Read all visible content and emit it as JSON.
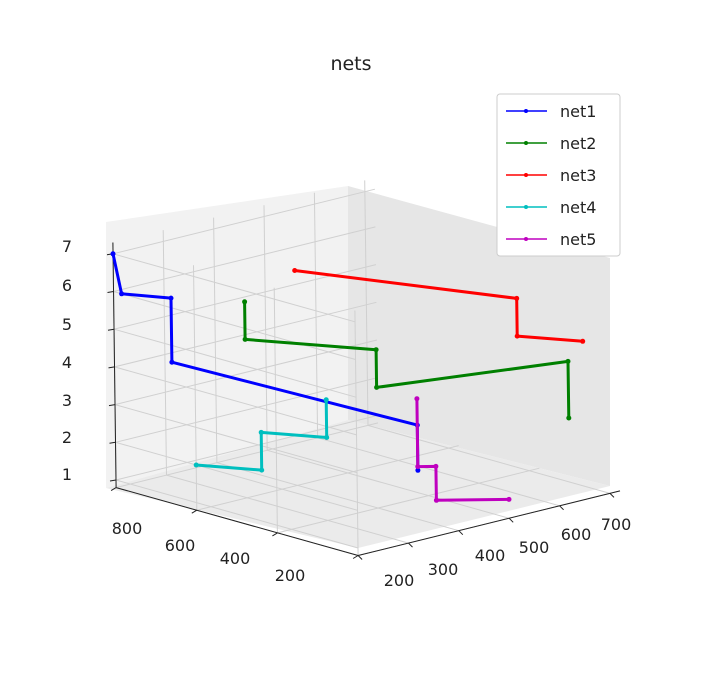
{
  "chart_data": {
    "type": "line3d",
    "title": "nets",
    "axes": {
      "x": {
        "ticks": [
          "800",
          "600",
          "400",
          "200"
        ]
      },
      "y": {
        "ticks": [
          "200",
          "300",
          "400",
          "500",
          "600",
          "700"
        ]
      },
      "z": {
        "ticks": [
          "1",
          "2",
          "3",
          "4",
          "5",
          "6",
          "7"
        ]
      }
    },
    "legend": {
      "position": "top-right"
    },
    "series": [
      {
        "name": "net1",
        "color": "#0000ff",
        "points": [
          {
            "x": 800,
            "y": 200,
            "z": 7.0
          },
          {
            "x": 780,
            "y": 200,
            "z": 6.0
          },
          {
            "x": 720,
            "y": 250,
            "z": 5.9
          },
          {
            "x": 720,
            "y": 250,
            "z": 4.2
          },
          {
            "x": 300,
            "y": 400,
            "z": 3.3
          },
          {
            "x": 300,
            "y": 400,
            "z": 2.1
          }
        ]
      },
      {
        "name": "net2",
        "color": "#008000",
        "points": [
          {
            "x": 600,
            "y": 300,
            "z": 6.0
          },
          {
            "x": 600,
            "y": 300,
            "z": 5.0
          },
          {
            "x": 400,
            "y": 400,
            "z": 5.0
          },
          {
            "x": 400,
            "y": 400,
            "z": 4.0
          },
          {
            "x": 300,
            "y": 700,
            "z": 4.0
          },
          {
            "x": 300,
            "y": 700,
            "z": 2.5
          }
        ]
      },
      {
        "name": "net3",
        "color": "#ff0000",
        "points": [
          {
            "x": 600,
            "y": 400,
            "z": 6.5
          },
          {
            "x": 300,
            "y": 600,
            "z": 6.0
          },
          {
            "x": 300,
            "y": 600,
            "z": 5.0
          },
          {
            "x": 200,
            "y": 650,
            "z": 5.0
          }
        ]
      },
      {
        "name": "net4",
        "color": "#00bfbf",
        "points": [
          {
            "x": 600,
            "y": 200,
            "z": 2.0
          },
          {
            "x": 500,
            "y": 250,
            "z": 2.0
          },
          {
            "x": 500,
            "y": 250,
            "z": 3.0
          },
          {
            "x": 400,
            "y": 300,
            "z": 3.0
          },
          {
            "x": 400,
            "y": 300,
            "z": 4.0
          }
        ]
      },
      {
        "name": "net5",
        "color": "#bf00bf",
        "points": [
          {
            "x": 300,
            "y": 400,
            "z": 4.0
          },
          {
            "x": 300,
            "y": 400,
            "z": 2.2
          },
          {
            "x": 280,
            "y": 420,
            "z": 2.2
          },
          {
            "x": 280,
            "y": 420,
            "z": 1.3
          },
          {
            "x": 200,
            "y": 500,
            "z": 1.3
          }
        ]
      }
    ]
  }
}
